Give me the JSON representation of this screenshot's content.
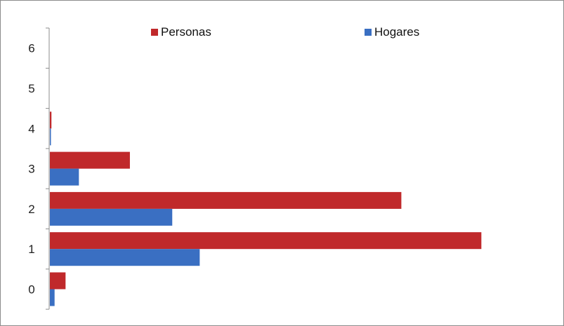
{
  "chart_data": {
    "type": "bar",
    "orientation": "horizontal",
    "categories": [
      "0",
      "1",
      "2",
      "3",
      "4",
      "5",
      "6"
    ],
    "series": [
      {
        "name": "Personas",
        "values": [
          2.0,
          55.0,
          44.8,
          10.2,
          0.2,
          0,
          0
        ],
        "color": "#c0292b"
      },
      {
        "name": "Hogares",
        "values": [
          0.6,
          19.1,
          15.6,
          3.7,
          0.1,
          0,
          0
        ],
        "color": "#3a6fc2"
      }
    ],
    "xlim": [
      0,
      65
    ],
    "legend_position": "top",
    "grid": false,
    "xaxis_visible": false
  },
  "legend": {
    "personas": "Personas",
    "hogares": "Hogares"
  }
}
